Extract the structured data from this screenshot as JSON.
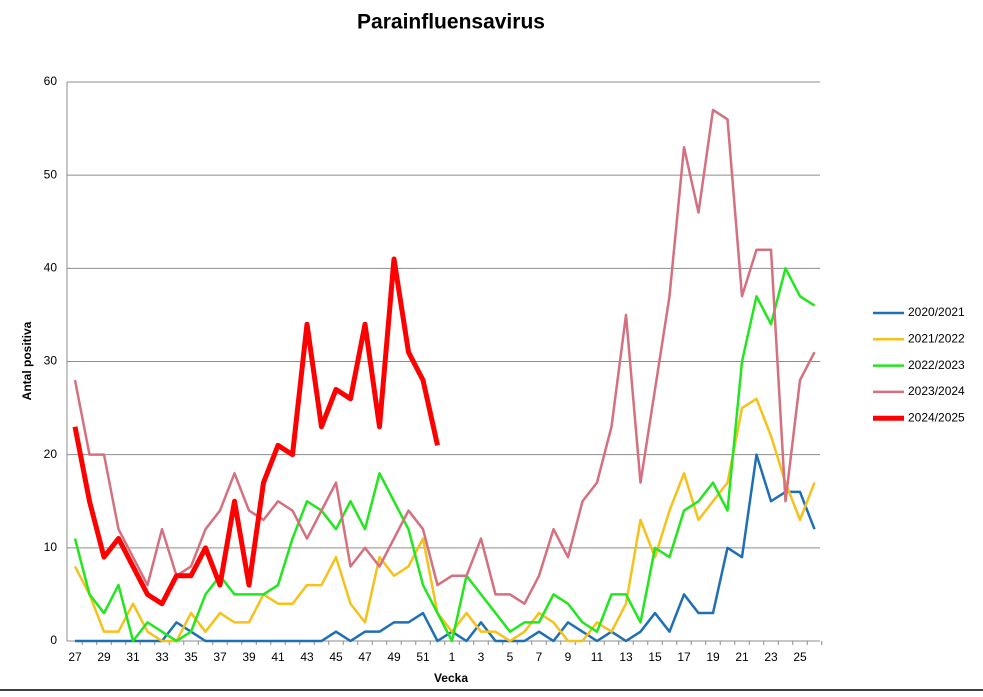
{
  "chart_data": {
    "type": "line",
    "title": "Parainfluensavirus",
    "x_label": "Vecka",
    "y_label": "Antal positiva",
    "categories": [
      "27",
      null,
      "29",
      null,
      "31",
      null,
      "33",
      null,
      "35",
      null,
      "37",
      null,
      "39",
      null,
      "41",
      null,
      "43",
      null,
      "45",
      null,
      "47",
      null,
      "49",
      null,
      "51",
      null,
      "1",
      null,
      "3",
      null,
      "5",
      null,
      "7",
      null,
      "9",
      null,
      "11",
      null,
      "13",
      null,
      "15",
      null,
      "17",
      null,
      "19",
      null,
      "21",
      null,
      "23",
      null,
      "25",
      null
    ],
    "ylim": [
      0,
      60
    ],
    "yticks": [
      0,
      10,
      20,
      30,
      40,
      50,
      60
    ],
    "grid": true,
    "legend": "right",
    "series": [
      {
        "name": "2020/2021",
        "color": "#1f6fb4",
        "values": [
          0,
          0,
          0,
          0,
          0,
          0,
          0,
          2,
          1,
          0,
          0,
          0,
          0,
          0,
          0,
          0,
          0,
          0,
          1,
          0,
          1,
          1,
          2,
          2,
          3,
          0,
          1,
          0,
          2,
          0,
          0,
          0,
          1,
          0,
          2,
          1,
          0,
          1,
          0,
          1,
          3,
          1,
          5,
          3,
          3,
          10,
          9,
          20,
          15,
          16,
          16,
          12
        ]
      },
      {
        "name": "2021/2022",
        "color": "#f5c21b",
        "values": [
          8,
          5,
          1,
          1,
          4,
          1,
          0,
          0,
          3,
          1,
          3,
          2,
          2,
          5,
          4,
          4,
          6,
          6,
          9,
          4,
          2,
          9,
          7,
          8,
          11,
          3,
          1,
          3,
          1,
          1,
          0,
          1,
          3,
          2,
          0,
          0,
          2,
          1,
          4,
          13,
          9,
          14,
          18,
          13,
          15,
          17,
          25,
          26,
          22,
          17,
          13,
          17
        ]
      },
      {
        "name": "2022/2023",
        "color": "#22e61e",
        "values": [
          11,
          5,
          3,
          6,
          0,
          2,
          1,
          0,
          1,
          5,
          7,
          5,
          5,
          5,
          6,
          11,
          15,
          14,
          12,
          15,
          12,
          18,
          15,
          12,
          6,
          3,
          0,
          7,
          5,
          3,
          1,
          2,
          2,
          5,
          4,
          2,
          1,
          5,
          5,
          2,
          10,
          9,
          14,
          15,
          17,
          14,
          30,
          37,
          34,
          40,
          37,
          36
        ]
      },
      {
        "name": "2023/2024",
        "color": "#d4707f",
        "values": [
          28,
          20,
          20,
          12,
          9,
          6,
          12,
          7,
          8,
          12,
          14,
          18,
          14,
          13,
          15,
          14,
          11,
          14,
          17,
          8,
          10,
          8,
          11,
          14,
          12,
          6,
          7,
          7,
          11,
          5,
          5,
          4,
          7,
          12,
          9,
          15,
          17,
          23,
          35,
          17,
          27,
          37,
          53,
          46,
          57,
          56,
          37,
          42,
          42,
          15,
          28,
          31
        ]
      },
      {
        "name": "2024/2025",
        "color": "#ff0000",
        "values": [
          23,
          15,
          9,
          11,
          8,
          5,
          4,
          7,
          7,
          10,
          6,
          15,
          6,
          17,
          21,
          20,
          34,
          23,
          27,
          26,
          34,
          23,
          41,
          31,
          28,
          21,
          null,
          null,
          null,
          null,
          null,
          null,
          null,
          null,
          null,
          null,
          null,
          null,
          null,
          null,
          null,
          null,
          null,
          null,
          null,
          null,
          null,
          null,
          null,
          null,
          null,
          null
        ]
      }
    ]
  }
}
